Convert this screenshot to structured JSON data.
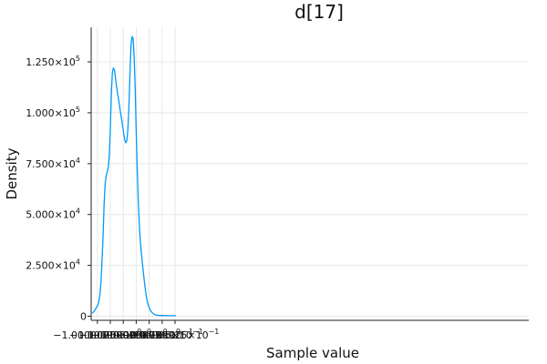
{
  "chart_data": {
    "type": "line",
    "title": "d[17]",
    "xlabel": "Sample value",
    "ylabel": "Density",
    "xlim": [
      -1.0000087,
      -0.9999242
    ],
    "ylim": [
      -2000,
      142000
    ],
    "grid": true,
    "legend": "none",
    "line_color": "#009af9",
    "x_ticks": [
      {
        "value": -1.0000075,
        "mantissa": "−1.0000075",
        "exp": "0"
      },
      {
        "value": -1.000005,
        "mantissa": "−1.000005",
        "exp": "0"
      },
      {
        "value": -1.0000025,
        "mantissa": "−1.0000025",
        "exp": "0"
      },
      {
        "value": -1.0,
        "mantissa": "−1.0000000",
        "exp": "0"
      },
      {
        "value": -0.9999975,
        "mantissa": "−9.999975",
        "exp": "−1"
      },
      {
        "value": -0.999995,
        "mantissa": "−9.99995",
        "exp": "−1"
      },
      {
        "value": -0.9999925,
        "mantissa": "−9.999925",
        "exp": "−1"
      }
    ],
    "y_ticks": [
      {
        "value": 0,
        "mantissa": "0",
        "exp": ""
      },
      {
        "value": 25000,
        "mantissa": "2.500×10",
        "exp": "4"
      },
      {
        "value": 50000,
        "mantissa": "5.000×10",
        "exp": "4"
      },
      {
        "value": 75000,
        "mantissa": "7.500×10",
        "exp": "4"
      },
      {
        "value": 100000,
        "mantissa": "1.000×10",
        "exp": "5"
      },
      {
        "value": 125000,
        "mantissa": "1.250×10",
        "exp": "5"
      }
    ],
    "series": [
      {
        "x": [
          -1.000008475,
          -1.0000082,
          -1.000008,
          -1.0000078,
          -1.0000076,
          -1.0000074,
          -1.0000072,
          -1.000007,
          -1.0000068,
          -1.0000066,
          -1.0000064,
          -1.0000062,
          -1.000006,
          -1.0000058,
          -1.0000056,
          -1.0000054,
          -1.0000052,
          -1.000005,
          -1.0000048,
          -1.0000046,
          -1.0000044,
          -1.0000042,
          -1.000004,
          -1.0000038,
          -1.0000036,
          -1.0000034,
          -1.0000032,
          -1.000003,
          -1.0000028,
          -1.0000026,
          -1.0000024,
          -1.0000022,
          -1.000002,
          -1.0000018,
          -1.0000016,
          -1.0000014,
          -1.0000012,
          -1.000001,
          -1.0000008,
          -1.0000006,
          -1.0000004,
          -1.0000002,
          -1.0,
          -0.9999998,
          -0.9999996,
          -0.9999994,
          -0.9999992,
          -0.999999,
          -0.9999988,
          -0.9999986,
          -0.9999984,
          -0.9999982,
          -0.999998,
          -0.9999978,
          -0.9999976,
          -0.9999975,
          -0.9999974,
          -0.9999972,
          -0.999997,
          -0.9999968,
          -0.9999966,
          -0.9999964,
          -0.9999962,
          -0.999996,
          -0.9999958,
          -0.9999956,
          -0.9999954,
          -0.9999952,
          -0.999995,
          -0.9999948,
          -0.9999946,
          -0.9999944,
          -0.9999942,
          -0.999994,
          -0.9999938,
          -0.9999936,
          -0.9999934,
          -0.9999932,
          -0.999993,
          -0.9999928,
          -0.9999926,
          -0.9999924,
          -0.99999245
        ],
        "y": [
          1500,
          2200,
          3000,
          3800,
          4600,
          5600,
          7500,
          11000,
          17000,
          27000,
          40000,
          55000,
          65000,
          69000,
          71000,
          73000,
          79000,
          92000,
          110000,
          120000,
          122000,
          121000,
          117000,
          113000,
          109500,
          106500,
          103000,
          99500,
          96500,
          93000,
          89500,
          86500,
          85200,
          86500,
          92000,
          104000,
          120000,
          133000,
          137500,
          136500,
          128000,
          112000,
          91000,
          71000,
          56000,
          45000,
          36500,
          31000,
          26000,
          21000,
          16500,
          12500,
          9000,
          6500,
          5000,
          4200,
          3500,
          2700,
          2000,
          1500,
          1100,
          800,
          600,
          500,
          450,
          400,
          380,
          360,
          350,
          340,
          330,
          320,
          310,
          300,
          300,
          300,
          300,
          300,
          300,
          300,
          300,
          300,
          300
        ]
      }
    ]
  }
}
